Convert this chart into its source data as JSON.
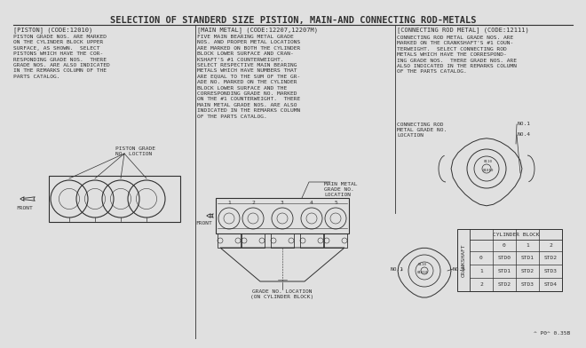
{
  "title": "SELECTION OF STANDERD SIZE PISTION, MAIN-AND CONNECTING ROD-METALS",
  "bg_color": "#e0e0e0",
  "fg_color": "#303030",
  "piston_header": "[PISTON] (CODE:12010)",
  "piston_text": "PISTON GRADE NOS. ARE MARKED\nON THE CYLINDER BLOCK UPPER\nSURFACE, AS SHOWN.  SELECT\nPISTONS WHICH HAVE THE COR-\nRESPONDING GRADE NOS.  THERE\nGRADE NOS. ARE ALSO INDICATED\nIN THE REMARKS COLUMN OF THE\nPARTS CATALOG.",
  "main_metal_header": "[MAIN METAL] (CODE:12207,12207M)",
  "main_metal_text": "FIVE MAIN BEARING METAL GRADE\nNOS. AND PROPER METAL LOCATIONS\nARE MARKED ON BOTH THE CYLINDER\nBLOCK LOWER SURFACE AND CRAN-\nKSHAFT'S #1 COUNTERWEIGHT.\nSELECT RESPECTIVE MAIN BEARING\nMETALS WHICH HAVE NUMBERS THAT\nARE EQUAL TO THE SUM OF THE GR-\nADE NO. MARKED ON THE CYLINDER\nBLOCK LOWER SURFACE AND THE\nCORRESPONDING GRADE NO. MARKED\nON THE #1 COUNTERWEIGHT.  THERE\nMAIN METAL GRADE NOS. ARE ALSO\nINDICATED IN THE REMARKS COLUMN\nOF THE PARTS CATALOG.",
  "conn_rod_header": "[CONNECTING ROD METAL] (CODE:12111)",
  "conn_rod_text": "CONNECTING ROD METAL GRADE NOS. ARE\nMARKED ON THE CRANKSHAFT'S #1 COUN-\nTERWEIGHT.  SELECT CONNECTING ROD\nMETALS WHICH HAVE THE CORRESPOND-\nING GRADE NOS.  THERE GRADE NOS. ARE\nALSO INDICATED IN THE REMARKS COLUMN\nOF THE PARTS CATALOG.",
  "piston_grade_label": "PISTON GRADE\nNO. LOCTION",
  "main_metal_grade_label": "MAIN METAL\nGRADE NO.\nLOCATION",
  "grade_no_location_label": "GRADE NO. LOCATION\n(ON CYLINDER BLOCK)",
  "conn_rod_grade_label": "CONNECTING ROD\nMETAL GRADE NO.\nLOCATION",
  "no1_label": "NO.1",
  "no4_label": "NO.4",
  "no1b_label": "NO.1",
  "no5_label": "NO.5",
  "front_label1": "FRONT",
  "front_label2": "FRONT",
  "table_col_labels": [
    "0",
    "1",
    "2"
  ],
  "table_row_labels": [
    "0",
    "1",
    "2"
  ],
  "table_data": [
    [
      "STD0",
      "STD1",
      "STD2"
    ],
    [
      "STD1",
      "STD2",
      "STD3"
    ],
    [
      "STD2",
      "STD3",
      "STD4"
    ]
  ],
  "crankshaft_label": "CRANKSHAFT",
  "cylinder_block_label": "CYLINDER BLOCK",
  "footnote": "^ P0^ 0.35B"
}
